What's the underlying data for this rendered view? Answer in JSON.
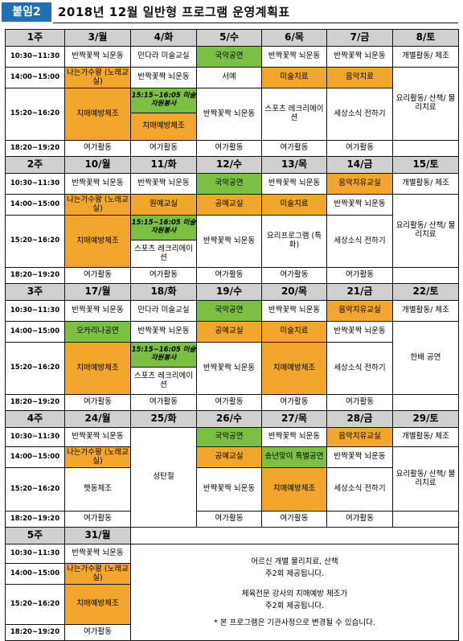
{
  "badge": "붙임2",
  "title": "2018년 12월 일반형 프로그램 운영계획표",
  "times": [
    "10:30~11:30",
    "14:00~15:00",
    "15:20~16:20",
    "18:20~19:20"
  ],
  "weeks": [
    {
      "week": "1주",
      "days": [
        "3/월",
        "4/화",
        "5/수",
        "6/목",
        "7/금",
        "8/토"
      ]
    },
    {
      "week": "2주",
      "days": [
        "10/월",
        "11/화",
        "12/수",
        "13/목",
        "14/금",
        "15/토"
      ]
    },
    {
      "week": "3주",
      "days": [
        "17/월",
        "18/화",
        "19/수",
        "20/목",
        "21/금",
        "22/토"
      ]
    },
    {
      "week": "4주",
      "days": [
        "24/월",
        "25/화",
        "26/수",
        "27/목",
        "28/금",
        "29/토"
      ]
    },
    {
      "week": "5주",
      "days": [
        "31/월"
      ]
    }
  ],
  "programs": {
    "ball": "반짝꽃짝 뇌운동",
    "mandala": "만다라 미술교실",
    "music_show": "국악공연",
    "sing": "나는가수왕 (노래교실)",
    "calligraphy": "서예",
    "art_therapy": "미술치료",
    "music_therapy": "음악치료",
    "dementia_ex": "치매예방체조",
    "art_volunteer": "15:15~16:05 미술자원봉사",
    "sports": "스포츠 레크리에이션",
    "news": "세상소식 전하기",
    "leisure": "여가활동",
    "cooking": "요리활동/ 산책/ 물리치료",
    "personal": "개별활동/ 체조",
    "flower": "원예교실",
    "craft": "공예교실",
    "music_therapy_yu": "음악치유교실",
    "cooking_special": "요리프로그램 (특화)",
    "ocarina": "오카리나공연",
    "hanbae": "한배 공연",
    "christmas": "성탄절",
    "balloon": "햇동체조",
    "yearend": "송년맞이 특별공연"
  },
  "notes": [
    "어르신 개별 물리치료, 산책",
    "주2회 제공됩니다.",
    "체육전문 강사의 치매예방 체조가",
    "주2회 제공됩니다.",
    "* 본 프로그램은 기관사정으로 변경될 수 있습니다."
  ]
}
